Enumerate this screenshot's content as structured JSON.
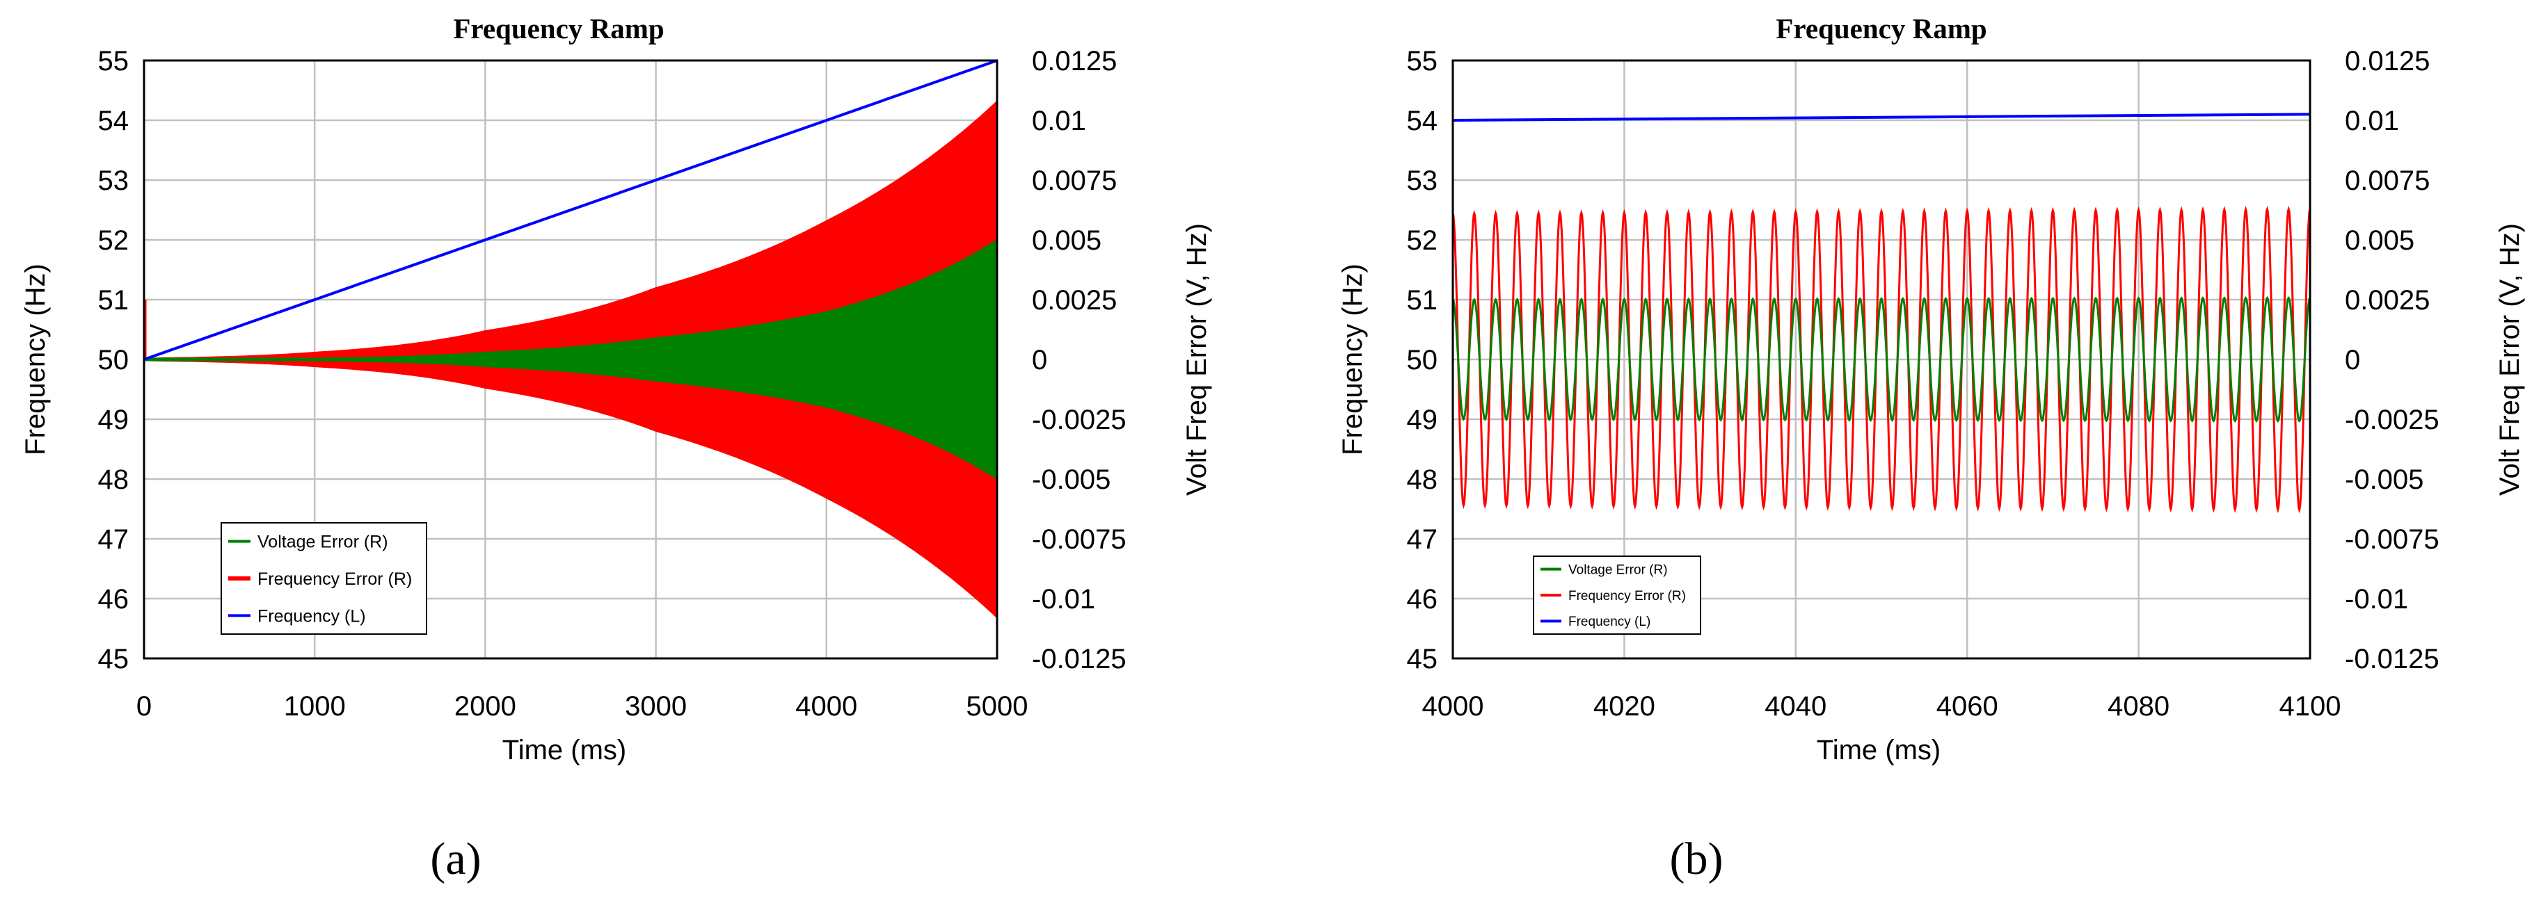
{
  "chart_data": [
    {
      "type": "line",
      "title": "Frequency Ramp",
      "xlabel": "Time (ms)",
      "ylabel": "Frequency (Hz)",
      "y2label": "Volt Freq Error  (V, Hz)",
      "xlim": [
        0,
        5000
      ],
      "ylim": [
        45,
        55
      ],
      "y2lim": [
        -0.0125,
        0.0125
      ],
      "grid": true,
      "legend_position": "bottom-left",
      "x_ticks": [
        "0",
        "1000",
        "2000",
        "3000",
        "4000",
        "5000"
      ],
      "y_ticks": [
        "55",
        "54",
        "53",
        "52",
        "51",
        "50",
        "49",
        "48",
        "47",
        "46",
        "45"
      ],
      "y2_ticks": [
        "0.0125",
        "0.01",
        "0.0075",
        "0.005",
        "0.0025",
        "0",
        "-0.0025",
        "-0.005",
        "-0.0075",
        "-0.01",
        "-0.0125"
      ],
      "series": [
        {
          "name": "Voltage Error (R)",
          "color": "#008000",
          "axis": "right",
          "envelope_time": [
            0,
            1000,
            2000,
            3000,
            4000,
            5000
          ],
          "envelope_amplitude": [
            5e-05,
            5e-05,
            0.0003,
            0.0009,
            0.002,
            0.005
          ]
        },
        {
          "name": "Frequency Error (R)",
          "color": "#ff0000",
          "axis": "right",
          "envelope_time": [
            0,
            1000,
            2000,
            3000,
            4000,
            5000
          ],
          "envelope_amplitude": [
            5e-05,
            0.0003,
            0.0012,
            0.003,
            0.0058,
            0.0108
          ]
        },
        {
          "name": "Frequency (L)",
          "color": "#0000ff",
          "axis": "left",
          "x": [
            0,
            5000
          ],
          "y": [
            50,
            55
          ]
        }
      ],
      "caption": "(a)"
    },
    {
      "type": "line",
      "title": "Frequency Ramp",
      "xlabel": "Time (ms)",
      "ylabel": "Frequency (Hz)",
      "y2label": "Volt Freq Error  (V, Hz)",
      "xlim": [
        4000,
        4100
      ],
      "ylim": [
        45,
        55
      ],
      "y2lim": [
        -0.0125,
        0.0125
      ],
      "grid": true,
      "legend_position": "bottom-left",
      "x_ticks": [
        "4000",
        "4020",
        "4040",
        "4060",
        "4080",
        "4100"
      ],
      "y_ticks": [
        "55",
        "54",
        "53",
        "52",
        "51",
        "50",
        "49",
        "48",
        "47",
        "46",
        "45"
      ],
      "y2_ticks": [
        "0.0125",
        "0.01",
        "0.0075",
        "0.005",
        "0.0025",
        "0",
        "-0.0025",
        "-0.005",
        "-0.0075",
        "-0.01",
        "-0.0125"
      ],
      "series": [
        {
          "name": "Voltage Error (R)",
          "color": "#008000",
          "axis": "right",
          "oscillation_period_ms": 2.5,
          "amplitude": 0.0025
        },
        {
          "name": "Frequency Error (R)",
          "color": "#ff0000",
          "axis": "right",
          "oscillation_period_ms": 2.5,
          "amplitude": 0.0061
        },
        {
          "name": "Frequency (L)",
          "color": "#0000ff",
          "axis": "left",
          "x": [
            4000,
            4100
          ],
          "y": [
            54.0,
            54.1
          ]
        }
      ],
      "caption": "(b)"
    }
  ]
}
